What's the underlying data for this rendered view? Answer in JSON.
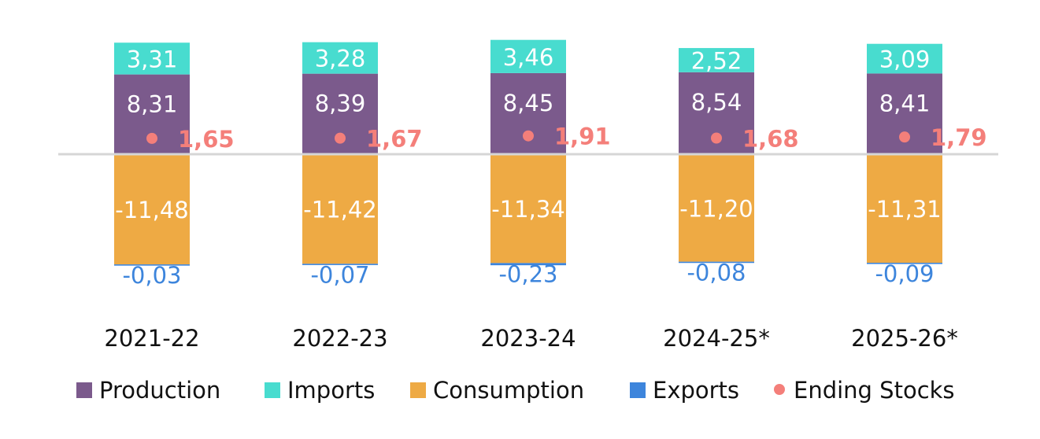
{
  "chart_data": {
    "type": "bar",
    "stacked": true,
    "categories": [
      "2021-22",
      "2022-23",
      "2023-24",
      "2024-25*",
      "2025-26*"
    ],
    "series": [
      {
        "name": "Production",
        "color": "#7b5a8c",
        "values": [
          8.31,
          8.39,
          8.45,
          8.54,
          8.41
        ],
        "labels": [
          "8,31",
          "8,39",
          "8,45",
          "8,54",
          "8,41"
        ]
      },
      {
        "name": "Imports",
        "color": "#48dccf",
        "values": [
          3.31,
          3.28,
          3.46,
          2.52,
          3.09
        ],
        "labels": [
          "3,31",
          "3,28",
          "3,46",
          "2,52",
          "3,09"
        ]
      },
      {
        "name": "Consumption",
        "color": "#eeaa44",
        "values": [
          -11.48,
          -11.42,
          -11.34,
          -11.2,
          -11.31
        ],
        "labels": [
          "-11,48",
          "-11,42",
          "-11,34",
          "-11,20",
          "-11,31"
        ]
      },
      {
        "name": "Exports",
        "color": "#3d85dc",
        "values": [
          -0.03,
          -0.07,
          -0.23,
          -0.08,
          -0.09
        ],
        "labels": [
          "-0,03",
          "-0,07",
          "-0,23",
          "-0,08",
          "-0,09"
        ]
      },
      {
        "name": "Ending Stocks",
        "color": "#f47f7a",
        "type": "point",
        "values": [
          1.65,
          1.67,
          1.91,
          1.68,
          1.79
        ],
        "labels": [
          "1,65",
          "1,67",
          "1,91",
          "1,68",
          "1,79"
        ]
      }
    ],
    "legend": "bottom",
    "grid": false,
    "zero_line_color": "#d6d6d6"
  }
}
